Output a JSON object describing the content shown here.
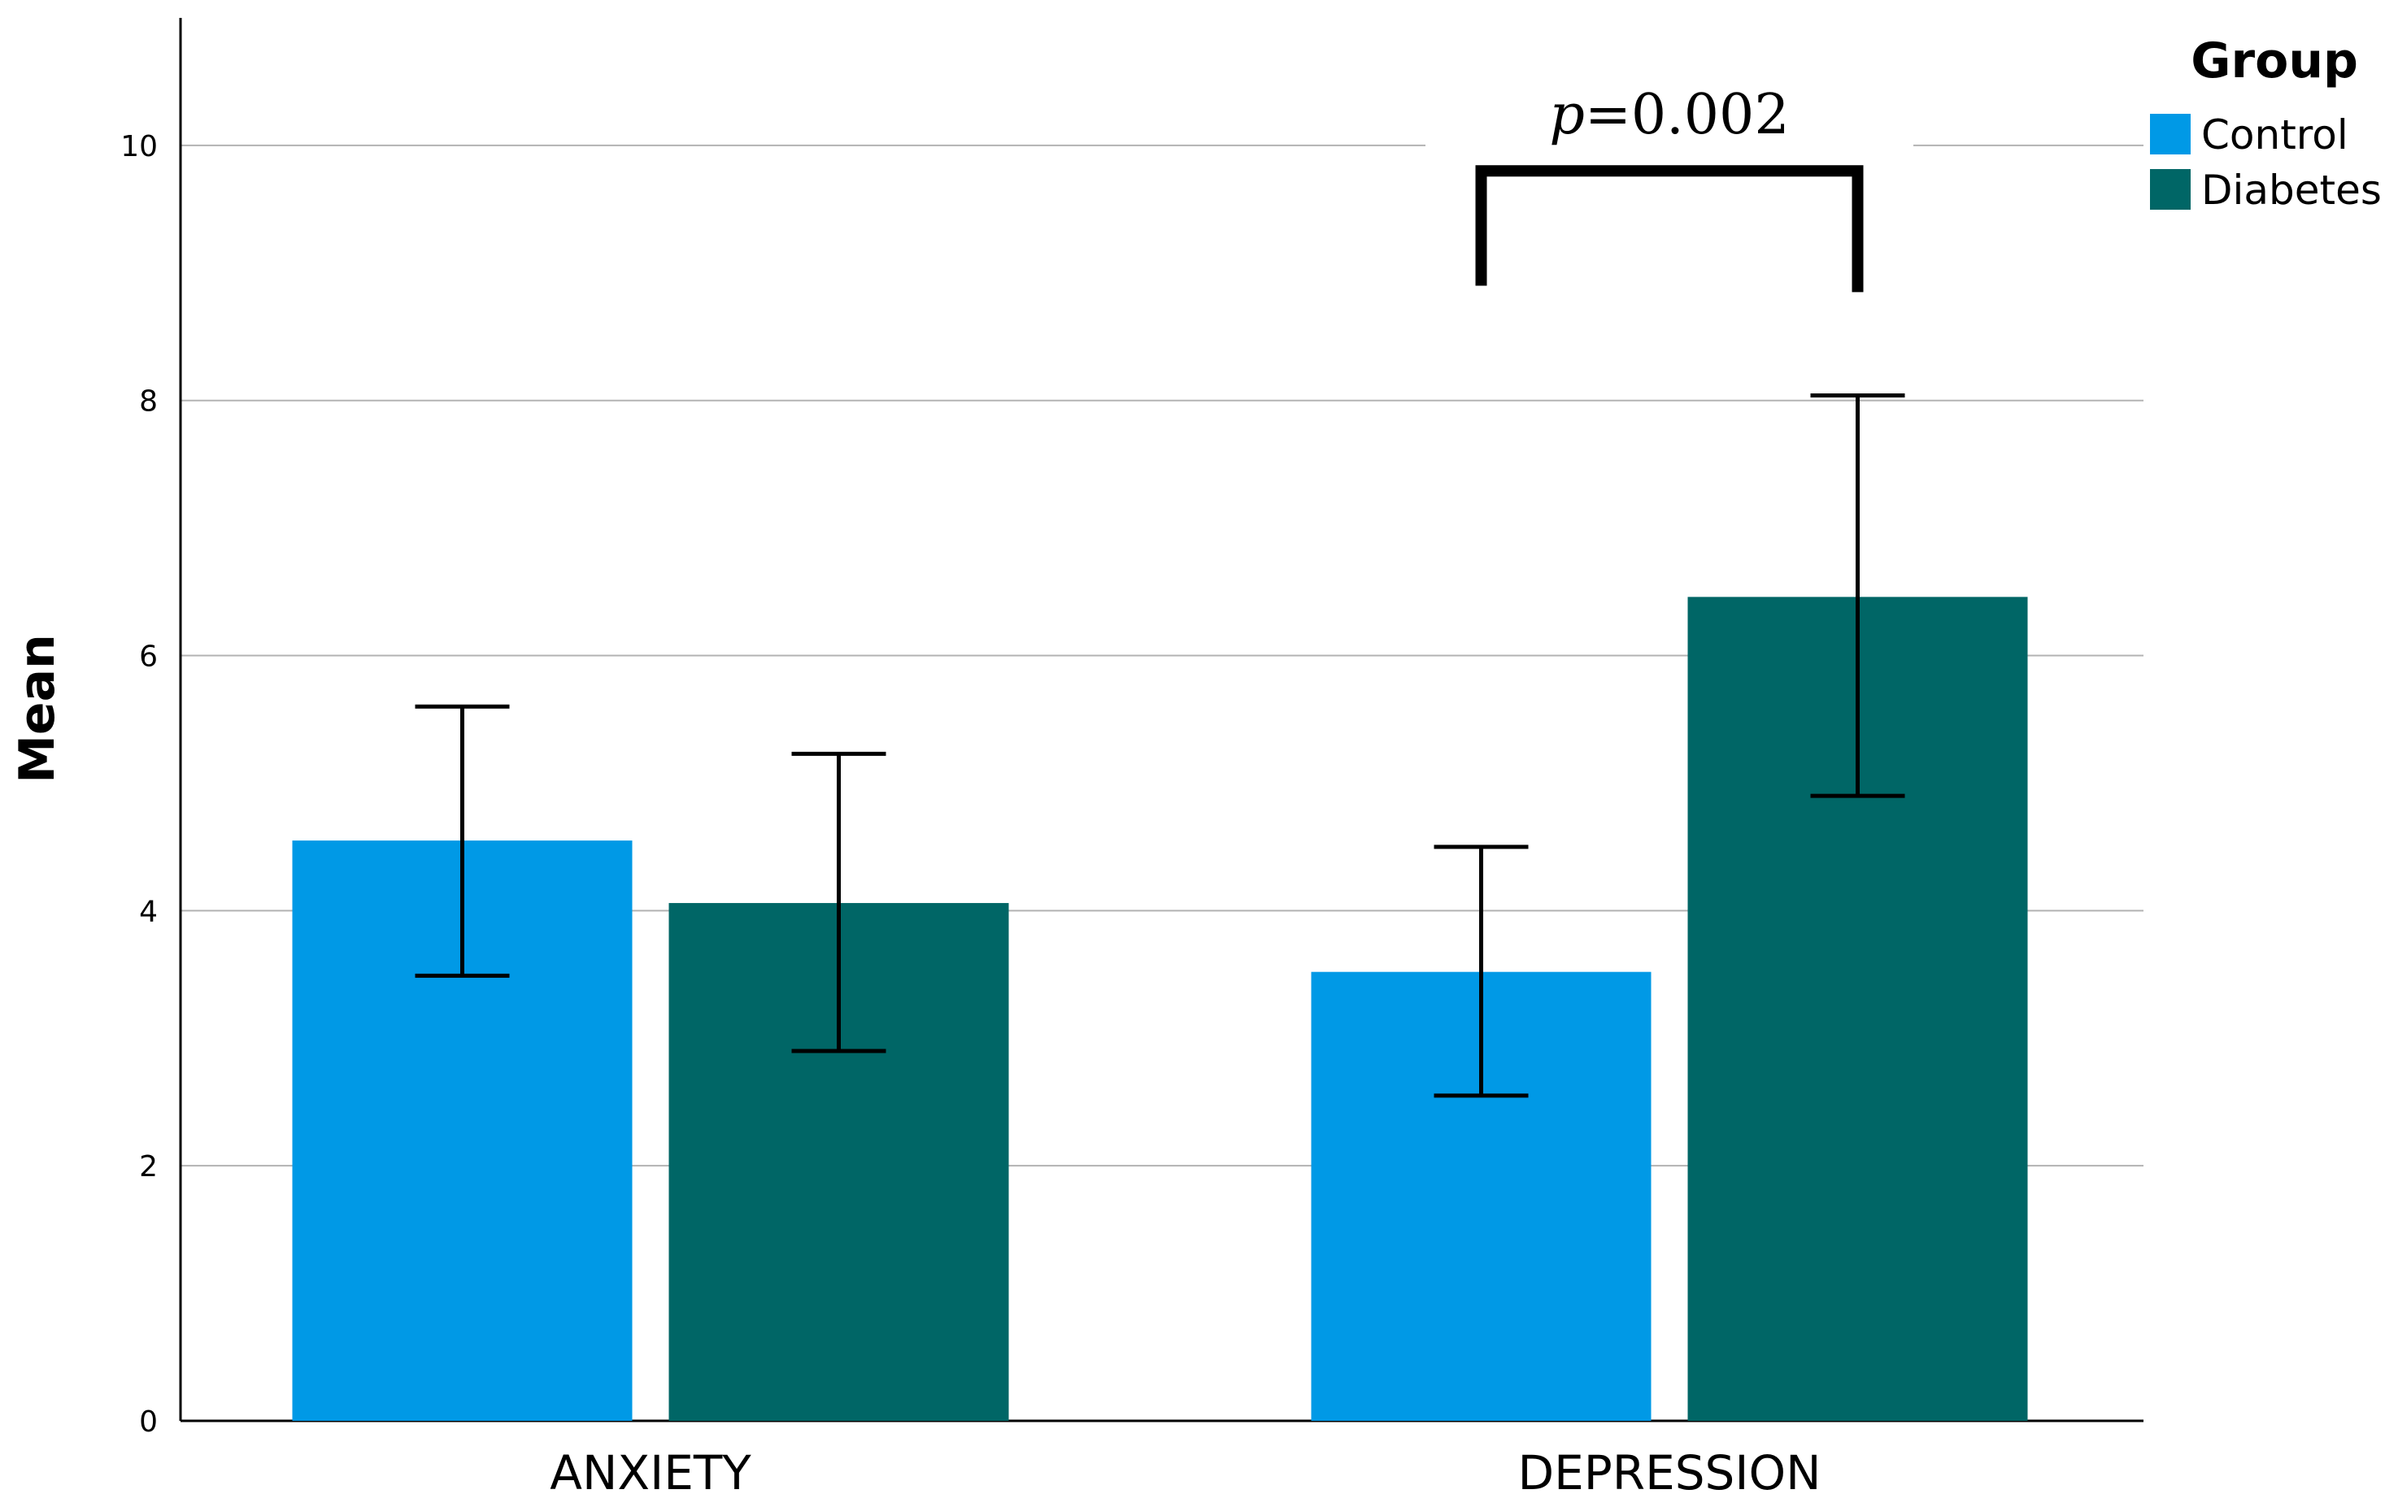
{
  "chart_data": {
    "type": "bar",
    "ylabel": "Mean",
    "xlabel": "",
    "ylim": [
      0,
      11
    ],
    "yticks": [
      0,
      2,
      4,
      6,
      8,
      10
    ],
    "ytick_labels": [
      "0",
      "2",
      "4",
      "6",
      "8",
      "10"
    ],
    "grid": true,
    "categories": [
      "ANXIETY",
      "DEPRESSION"
    ],
    "legend": {
      "title": "Group",
      "position": "top-right"
    },
    "series": [
      {
        "name": "Control",
        "color": "#0099E6",
        "values": [
          4.55,
          3.52
        ],
        "error_low": [
          3.49,
          2.55
        ],
        "error_high": [
          5.6,
          4.5
        ]
      },
      {
        "name": "Diabetes",
        "color": "#006666",
        "values": [
          4.06,
          6.46
        ],
        "error_low": [
          2.9,
          4.9
        ],
        "error_high": [
          5.23,
          8.04
        ]
      }
    ],
    "annotations": [
      {
        "category": "DEPRESSION",
        "p_symbol": "p",
        "p_value": "=0.002",
        "bracket_top": 9.8,
        "bracket_left_bottom": 8.9,
        "bracket_right_bottom": 8.85
      }
    ]
  }
}
